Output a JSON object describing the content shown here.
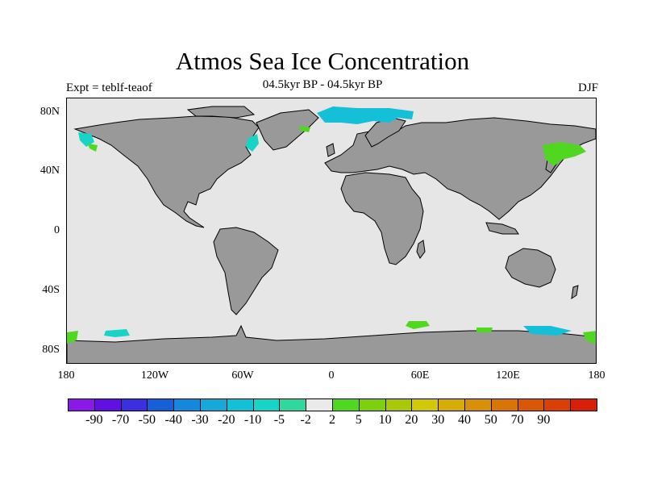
{
  "title": "Atmos Sea Ice Concentration",
  "subtitle": "04.5kyr BP - 04.5kyr BP",
  "left_label": "Expt = teblf-teaof",
  "right_label": "DJF",
  "y_ticks": [
    "80N",
    "40N",
    "0",
    "40S",
    "80S"
  ],
  "x_ticks": [
    "180",
    "120W",
    "60W",
    "0",
    "60E",
    "120E",
    "180"
  ],
  "colorbar": {
    "colors": [
      "#8a18e8",
      "#6010e0",
      "#3a30e0",
      "#1560d8",
      "#1488dc",
      "#16a8d8",
      "#14c0d8",
      "#16d4c8",
      "#30d8a0",
      "#eaeaea",
      "#50d820",
      "#7cd010",
      "#a8c808",
      "#d0c808",
      "#d8ac08",
      "#d89008",
      "#d87408",
      "#d85808",
      "#d84008",
      "#d82008"
    ],
    "labels": [
      "-90",
      "-70",
      "-50",
      "-40",
      "-30",
      "-20",
      "-10",
      "-5",
      "-2",
      "2",
      "5",
      "10",
      "20",
      "30",
      "40",
      "50",
      "70",
      "90"
    ]
  },
  "colors": {
    "land": "#999999",
    "ocean": "#e6e6e6",
    "ice_decrease": "#14c0d8",
    "ice_increase": "#50d820",
    "ice_slight_decrease": "#16d4c8"
  }
}
